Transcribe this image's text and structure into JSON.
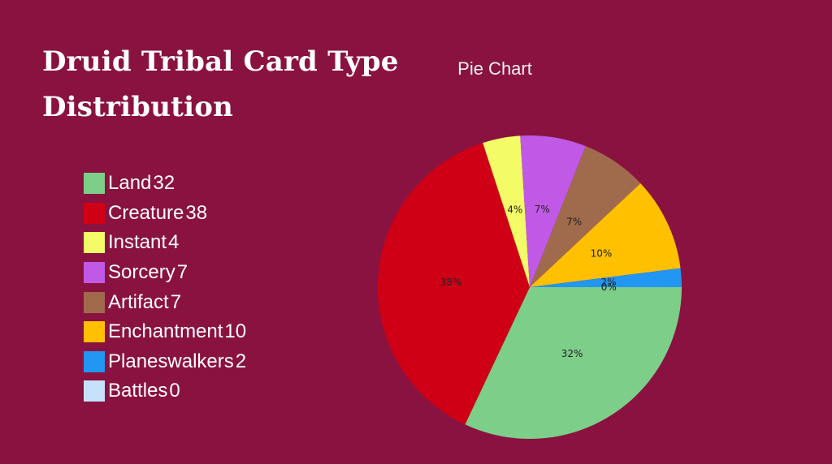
{
  "page": {
    "title": "Druid Tribal Card Type Distribution",
    "background": "#8a1240"
  },
  "chart_data": {
    "type": "pie",
    "title": "Pie Chart",
    "categories": [
      "Land",
      "Creature",
      "Instant",
      "Sorcery",
      "Artifact",
      "Enchantment",
      "Planeswalkers",
      "Battles"
    ],
    "values": [
      32,
      38,
      4,
      7,
      7,
      10,
      2,
      0
    ],
    "percent_labels": [
      "32%",
      "38%",
      "4%",
      "7%",
      "7%",
      "10%",
      "2%",
      "0%"
    ],
    "colors": [
      "#7dce88",
      "#cf0015",
      "#f3fb67",
      "#c059e6",
      "#a06b4c",
      "#ffc000",
      "#2196f3",
      "#c6e2fb"
    ],
    "legend_position": "left"
  }
}
